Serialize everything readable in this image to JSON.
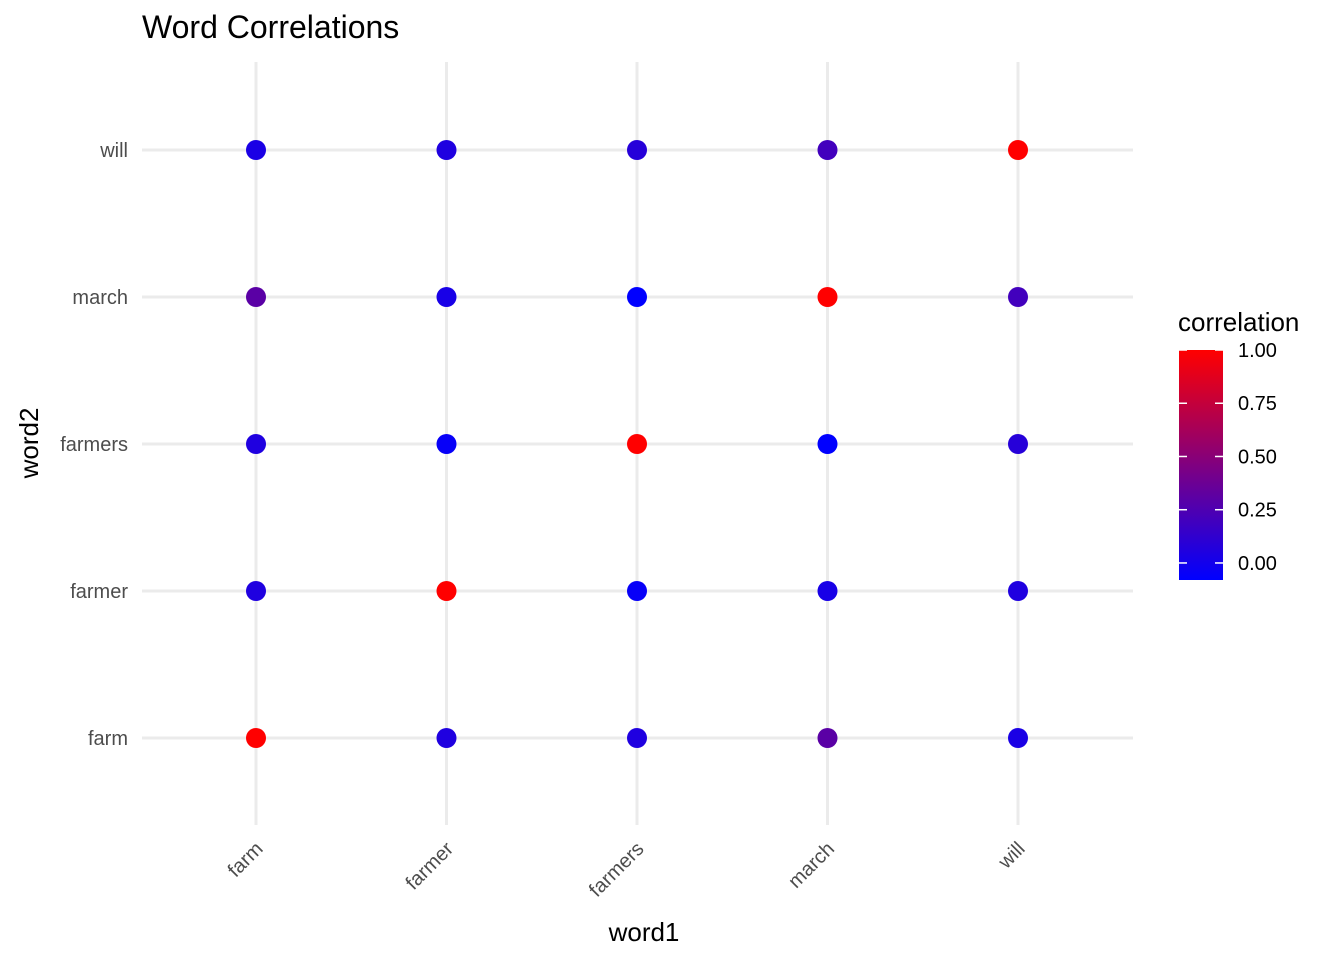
{
  "chart_data": {
    "type": "scatter",
    "title": "Word Correlations",
    "xlabel": "word1",
    "ylabel": "word2",
    "x_categories": [
      "farm",
      "farmer",
      "farmers",
      "march",
      "will"
    ],
    "y_categories": [
      "farm",
      "farmer",
      "farmers",
      "march",
      "will"
    ],
    "points": [
      {
        "x": "farm",
        "y": "farm",
        "correlation": 1.0
      },
      {
        "x": "farm",
        "y": "farmer",
        "correlation": 0.05
      },
      {
        "x": "farm",
        "y": "farmers",
        "correlation": 0.05
      },
      {
        "x": "farm",
        "y": "march",
        "correlation": 0.3
      },
      {
        "x": "farm",
        "y": "will",
        "correlation": 0.03
      },
      {
        "x": "farmer",
        "y": "farm",
        "correlation": 0.05
      },
      {
        "x": "farmer",
        "y": "farmer",
        "correlation": 1.0
      },
      {
        "x": "farmer",
        "y": "farmers",
        "correlation": -0.05
      },
      {
        "x": "farmer",
        "y": "march",
        "correlation": 0.02
      },
      {
        "x": "farmer",
        "y": "will",
        "correlation": 0.05
      },
      {
        "x": "farmers",
        "y": "farm",
        "correlation": 0.05
      },
      {
        "x": "farmers",
        "y": "farmer",
        "correlation": -0.05
      },
      {
        "x": "farmers",
        "y": "farmers",
        "correlation": 1.0
      },
      {
        "x": "farmers",
        "y": "march",
        "correlation": -0.08
      },
      {
        "x": "farmers",
        "y": "will",
        "correlation": 0.08
      },
      {
        "x": "march",
        "y": "farm",
        "correlation": 0.3
      },
      {
        "x": "march",
        "y": "farmer",
        "correlation": 0.02
      },
      {
        "x": "march",
        "y": "farmers",
        "correlation": -0.08
      },
      {
        "x": "march",
        "y": "march",
        "correlation": 1.0
      },
      {
        "x": "march",
        "y": "will",
        "correlation": 0.2
      },
      {
        "x": "will",
        "y": "farm",
        "correlation": 0.03
      },
      {
        "x": "will",
        "y": "farmer",
        "correlation": 0.05
      },
      {
        "x": "will",
        "y": "farmers",
        "correlation": 0.08
      },
      {
        "x": "will",
        "y": "march",
        "correlation": 0.2
      },
      {
        "x": "will",
        "y": "will",
        "correlation": 1.0
      }
    ],
    "legend": {
      "title": "correlation",
      "position": "right",
      "range": [
        -0.08,
        1.0
      ],
      "breaks": [
        1.0,
        0.75,
        0.5,
        0.25,
        0.0
      ],
      "break_labels": [
        "1.00",
        "0.75",
        "0.50",
        "0.25",
        "0.00"
      ],
      "low_color": "#0000ff",
      "high_color": "#ff0000"
    },
    "grid": true
  }
}
